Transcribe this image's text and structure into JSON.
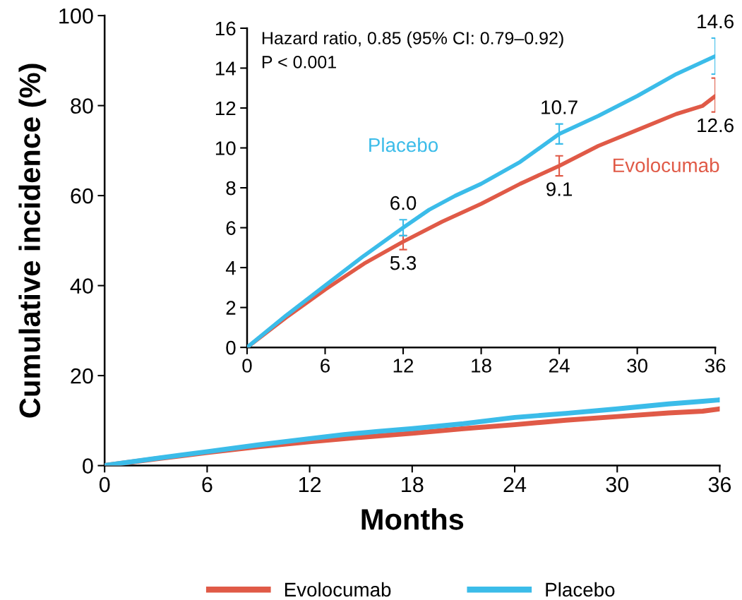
{
  "chart_data": [
    {
      "type": "line",
      "xlabel": "Months",
      "ylabel": "Cumulative incidence (%)",
      "xlim": [
        0,
        36
      ],
      "ylim": [
        0,
        100
      ],
      "xticks": [
        0,
        6,
        12,
        18,
        24,
        30,
        36
      ],
      "yticks": [
        0,
        20,
        40,
        60,
        80,
        100
      ],
      "legend": "bottom",
      "grid": false,
      "marker": "none",
      "line_style": "solid",
      "series": [
        {
          "name": "Evolocumab",
          "color": "#e05a47",
          "x": [
            0,
            3,
            6,
            9,
            12,
            15,
            18,
            21,
            24,
            27,
            30,
            33,
            35,
            36
          ],
          "values": [
            0,
            1.5,
            2.9,
            4.2,
            5.3,
            6.3,
            7.2,
            8.2,
            9.1,
            10.1,
            10.9,
            11.7,
            12.1,
            12.6
          ]
        },
        {
          "name": "Placebo",
          "color": "#3bbce9",
          "x": [
            0,
            3,
            6,
            9,
            12,
            14,
            16,
            18,
            21,
            24,
            27,
            30,
            33,
            35,
            36
          ],
          "values": [
            0,
            1.6,
            3.1,
            4.6,
            6.0,
            6.9,
            7.6,
            8.2,
            9.3,
            10.7,
            11.6,
            12.6,
            13.7,
            14.3,
            14.6
          ]
        }
      ]
    },
    {
      "type": "line",
      "xlim": [
        0,
        36
      ],
      "ylim": [
        0,
        16
      ],
      "xticks": [
        0,
        6,
        12,
        18,
        24,
        30,
        36
      ],
      "yticks": [
        0,
        2,
        4,
        6,
        8,
        10,
        12,
        14,
        16
      ],
      "grid": false,
      "marker": "none",
      "line_style": "solid",
      "annotations": [
        "Hazard ratio, 0.85 (95% CI: 0.79–0.92)",
        "P < 0.001"
      ],
      "series": [
        {
          "name": "Evolocumab",
          "color": "#e05a47",
          "x": [
            0,
            3,
            6,
            9,
            12,
            15,
            18,
            21,
            24,
            27,
            30,
            33,
            35,
            36
          ],
          "values": [
            0,
            1.5,
            2.9,
            4.2,
            5.3,
            6.3,
            7.2,
            8.2,
            9.1,
            10.1,
            10.9,
            11.7,
            12.1,
            12.6
          ],
          "errors": [
            null,
            null,
            null,
            null,
            [
              4.9,
              5.6
            ],
            null,
            null,
            null,
            [
              8.6,
              9.6
            ],
            null,
            null,
            null,
            null,
            [
              11.8,
              13.5
            ]
          ],
          "value_labels": [
            null,
            null,
            null,
            null,
            "5.3",
            null,
            null,
            null,
            "9.1",
            null,
            null,
            null,
            null,
            "12.6"
          ]
        },
        {
          "name": "Placebo",
          "color": "#3bbce9",
          "x": [
            0,
            3,
            6,
            9,
            12,
            14,
            16,
            18,
            21,
            24,
            27,
            30,
            33,
            35,
            36
          ],
          "values": [
            0,
            1.6,
            3.1,
            4.6,
            6.0,
            6.9,
            7.6,
            8.2,
            9.3,
            10.7,
            11.6,
            12.6,
            13.7,
            14.3,
            14.6
          ],
          "errors": [
            null,
            null,
            null,
            null,
            [
              5.6,
              6.4
            ],
            null,
            null,
            null,
            null,
            [
              10.2,
              11.2
            ],
            null,
            null,
            null,
            null,
            [
              13.7,
              15.5
            ]
          ],
          "value_labels": [
            null,
            null,
            null,
            null,
            "6.0",
            null,
            null,
            null,
            null,
            "10.7",
            null,
            null,
            null,
            null,
            "14.6"
          ]
        }
      ]
    }
  ]
}
